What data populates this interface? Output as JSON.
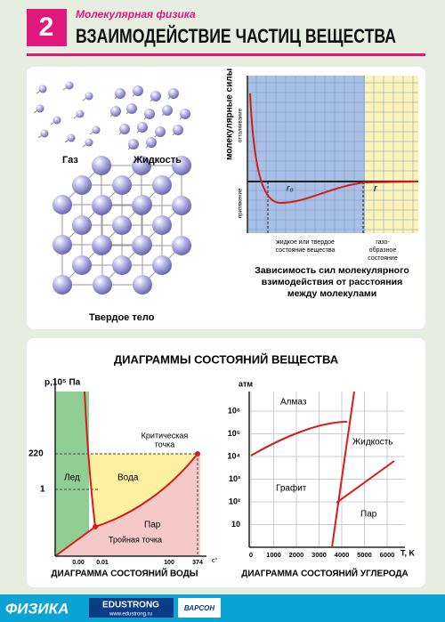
{
  "header": {
    "number": "2",
    "subject": "Молекулярная физика",
    "title": "ВЗАИМОДЕЙСТВИЕ ЧАСТИЦ ВЕЩЕСТВА"
  },
  "states": {
    "gas": "Газ",
    "liquid": "Жидкость",
    "solid": "Твердое тело"
  },
  "force_graph": {
    "y_label": "молекулярные силы",
    "repulsion": "отталкивание",
    "attraction": "притяжение",
    "r0": "r₀",
    "r": "r",
    "liquid_solid": [
      "жидкое или твердое",
      "состояние вещества"
    ],
    "gas": [
      "газо-",
      "образное",
      "состояние"
    ],
    "caption": [
      "Зависимость сил молекулярного",
      "взимодействия от расстояния",
      "между молекулами"
    ]
  },
  "diagrams_title": "ДИАГРАММЫ СОСТОЯНИЙ ВЕЩЕСТВА",
  "water": {
    "y_label": "p,10⁵ Па",
    "yticks": [
      "220",
      "1"
    ],
    "xticks": [
      "0.00",
      "0.01",
      "100",
      "374"
    ],
    "x_unit": "c°",
    "regions": [
      "Лед",
      "Вода",
      "Пар"
    ],
    "critical": [
      "Критическая",
      "точка"
    ],
    "triple": "Тройная точка",
    "caption": "ДИАГРАММА СОСТОЯНИЙ ВОДЫ"
  },
  "carbon": {
    "y_label": "атм",
    "yticks": [
      "10⁶",
      "10⁵",
      "10⁴",
      "10³",
      "10²",
      "10"
    ],
    "xticks": [
      "0",
      "1000",
      "2000",
      "3000",
      "4000",
      "5000",
      "6000"
    ],
    "x_label": "T, K",
    "regions": [
      "Алмаз",
      "Жидкость",
      "Графит",
      "Пар"
    ],
    "caption": "ДИАГРАММА СОСТОЯНИЙ УГЛЕРОДА"
  },
  "footer": {
    "brand": "ФИЗИКА",
    "edustrong": "EDUSTRONG",
    "site": "www.edustrong.ru",
    "publisher": "ВАРСОН"
  }
}
